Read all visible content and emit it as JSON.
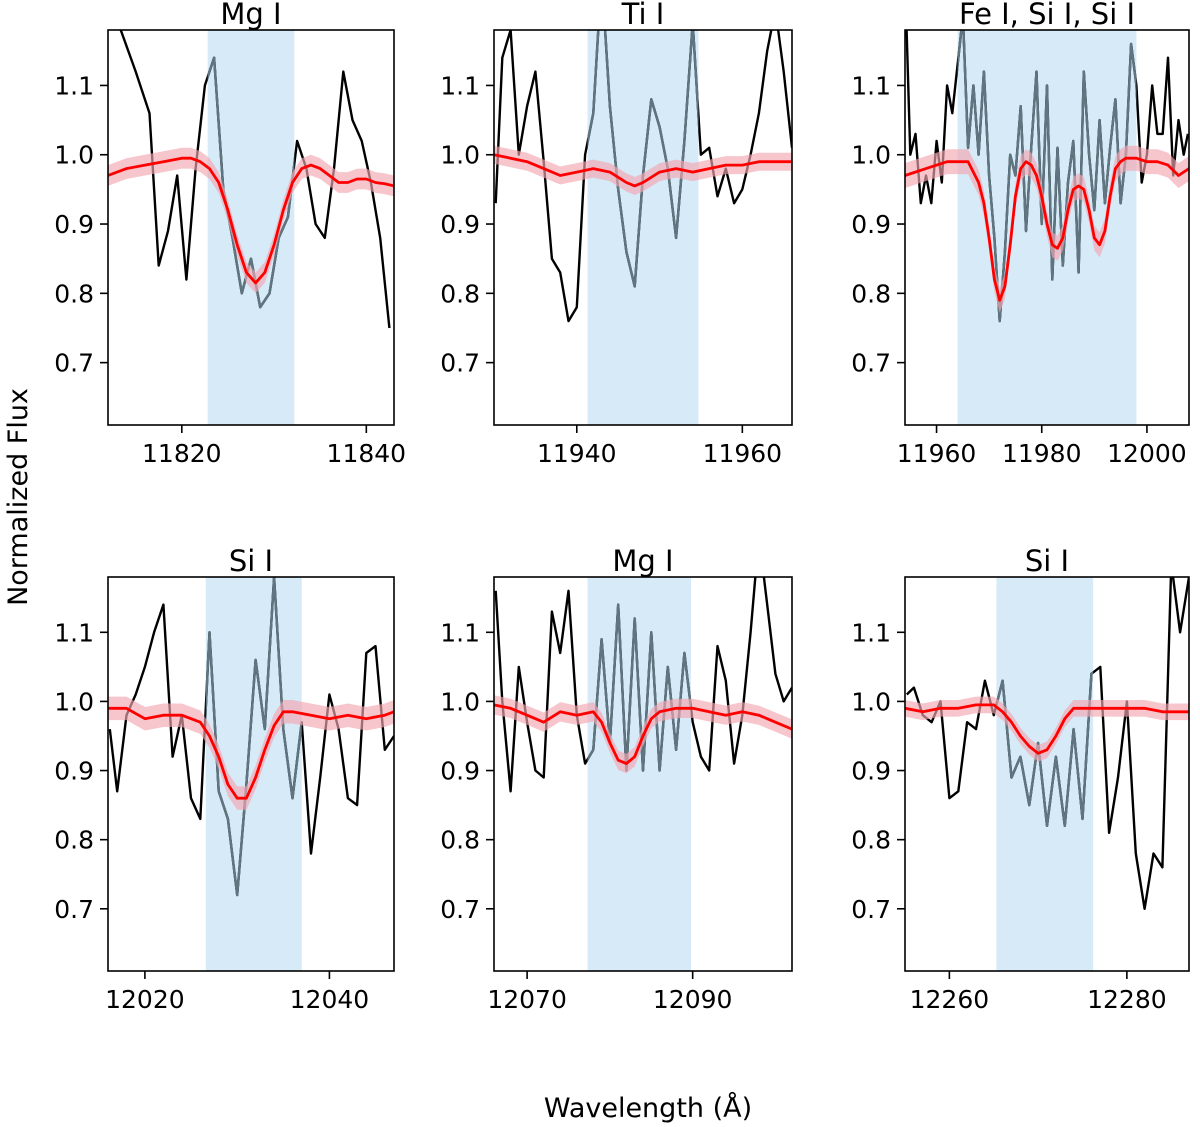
{
  "figure": {
    "ylabel": "Normalized Flux",
    "xlabel": "Wavelength (Å)"
  },
  "colors": {
    "observed": "#000000",
    "observed_in_window": "#5f7580",
    "model": "#ff0000",
    "model_band": "#f2a6b0",
    "window": "#d6eaf8"
  },
  "chart_data": [
    {
      "type": "line",
      "title": "Mg I",
      "xlim": [
        11812,
        11843
      ],
      "ylim": [
        0.61,
        1.18
      ],
      "xticks": [
        11820,
        11840
      ],
      "xtick_labels": [
        "11820",
        "11840"
      ],
      "yticks": [
        0.7,
        0.8,
        0.9,
        1.0,
        1.1
      ],
      "ytick_labels": [
        "0.7",
        "0.8",
        "0.9",
        "1.0",
        "1.1"
      ],
      "window": [
        11822.8,
        11832.2
      ],
      "observed": {
        "x": [
          11812.3,
          11815,
          11816.5,
          11817.5,
          11818.5,
          11819.5,
          11820.5,
          11821.5,
          11822.5,
          11823.5,
          11824.5,
          11825.5,
          11826.5,
          11827.5,
          11828.5,
          11829.5,
          11830.5,
          11831.5,
          11832.5,
          11833.5,
          11834.5,
          11835.5,
          11836.5,
          11837.5,
          11838.5,
          11839.5,
          11840.5,
          11841.5,
          11842.5
        ],
        "y": [
          1.22,
          1.12,
          1.06,
          0.84,
          0.89,
          0.97,
          0.82,
          0.98,
          1.1,
          1.14,
          0.95,
          0.88,
          0.8,
          0.85,
          0.78,
          0.8,
          0.88,
          0.91,
          1.02,
          0.98,
          0.9,
          0.88,
          0.98,
          1.12,
          1.05,
          1.02,
          0.96,
          0.88,
          0.75
        ]
      },
      "model": {
        "x": [
          11812,
          11814,
          11816,
          11818,
          11820,
          11821,
          11822,
          11823,
          11824,
          11825,
          11826,
          11827,
          11828,
          11829,
          11830,
          11831,
          11832,
          11833,
          11834,
          11835,
          11836,
          11837,
          11838,
          11839,
          11840,
          11841,
          11842,
          11843
        ],
        "y": [
          0.97,
          0.98,
          0.985,
          0.99,
          0.995,
          0.995,
          0.99,
          0.98,
          0.96,
          0.92,
          0.87,
          0.83,
          0.815,
          0.83,
          0.87,
          0.92,
          0.96,
          0.98,
          0.985,
          0.98,
          0.97,
          0.96,
          0.96,
          0.965,
          0.965,
          0.96,
          0.958,
          0.955
        ],
        "band": 0.015
      }
    },
    {
      "type": "line",
      "title": "Ti I",
      "xlim": [
        11930,
        11966
      ],
      "ylim": [
        0.61,
        1.18
      ],
      "xticks": [
        11940,
        11960
      ],
      "xtick_labels": [
        "11940",
        "11960"
      ],
      "yticks": [
        0.7,
        0.8,
        0.9,
        1.0,
        1.1
      ],
      "ytick_labels": [
        "0.7",
        "0.8",
        "0.9",
        "1.0",
        "1.1"
      ],
      "window": [
        11941.3,
        11954.7
      ],
      "observed": {
        "x": [
          11930.2,
          11931,
          11932,
          11933,
          11934,
          11935,
          11936,
          11937,
          11938,
          11939,
          11940,
          11941,
          11942,
          11943,
          11944,
          11945,
          11946,
          11947,
          11948,
          11949,
          11950,
          11951,
          11952,
          11953,
          11954,
          11955,
          11956,
          11957,
          11958,
          11959,
          11960,
          11961,
          11962,
          11963,
          11964,
          11965,
          11966
        ],
        "y": [
          0.93,
          1.14,
          1.18,
          1.0,
          1.07,
          1.12,
          0.99,
          0.85,
          0.83,
          0.76,
          0.78,
          1.0,
          1.06,
          1.26,
          1.07,
          0.95,
          0.86,
          0.81,
          0.97,
          1.08,
          1.04,
          0.98,
          0.88,
          1.02,
          1.19,
          1.0,
          1.01,
          0.94,
          0.98,
          0.93,
          0.95,
          1.0,
          1.06,
          1.15,
          1.21,
          1.12,
          1.01
        ]
      },
      "model": {
        "x": [
          11930,
          11932,
          11934,
          11936,
          11938,
          11940,
          11942,
          11944,
          11946,
          11947,
          11948,
          11950,
          11952,
          11954,
          11956,
          11958,
          11960,
          11962,
          11964,
          11966
        ],
        "y": [
          1.0,
          0.995,
          0.99,
          0.98,
          0.97,
          0.975,
          0.98,
          0.975,
          0.96,
          0.955,
          0.96,
          0.975,
          0.98,
          0.975,
          0.98,
          0.985,
          0.985,
          0.99,
          0.99,
          0.99
        ],
        "band": 0.013
      }
    },
    {
      "type": "line",
      "title": "Fe I, Si I, Si I",
      "xlim": [
        11954,
        12008
      ],
      "ylim": [
        0.61,
        1.18
      ],
      "xticks": [
        11960,
        11980,
        12000
      ],
      "xtick_labels": [
        "11960",
        "11980",
        "12000"
      ],
      "yticks": [
        0.7,
        0.8,
        0.9,
        1.0,
        1.1
      ],
      "ytick_labels": [
        "0.7",
        "0.8",
        "0.9",
        "1.0",
        "1.1"
      ],
      "window": [
        11964,
        11998
      ],
      "observed": {
        "x": [
          11954.3,
          11955,
          11956,
          11957,
          11958,
          11959,
          11960,
          11961,
          11962,
          11963,
          11964,
          11965,
          11966,
          11967,
          11968,
          11969,
          11970,
          11971,
          11972,
          11973,
          11974,
          11975,
          11976,
          11977,
          11978,
          11979,
          11980,
          11981,
          11982,
          11983,
          11984,
          11985,
          11986,
          11987,
          11988,
          11989,
          11990,
          11991,
          11992,
          11993,
          11994,
          11995,
          11996,
          11997,
          11998,
          11999,
          12000,
          12001,
          12002,
          12003,
          12004,
          12005,
          12006,
          12007,
          12007.8
        ],
        "y": [
          1.18,
          1.0,
          1.03,
          0.93,
          0.97,
          0.93,
          1.02,
          0.96,
          1.1,
          1.06,
          1.13,
          1.2,
          1.01,
          1.1,
          1.0,
          1.12,
          0.97,
          0.88,
          0.76,
          0.86,
          1.0,
          0.97,
          1.07,
          0.89,
          1.01,
          1.12,
          0.9,
          1.1,
          0.82,
          1.01,
          0.84,
          0.96,
          1.02,
          0.83,
          1.12,
          1.0,
          0.92,
          1.05,
          0.93,
          1.01,
          1.08,
          0.93,
          1.0,
          1.16,
          1.1,
          0.96,
          1.0,
          1.1,
          1.03,
          1.03,
          1.14,
          0.97,
          1.05,
          1.0,
          1.03
        ]
      },
      "model": {
        "x": [
          11954,
          11958,
          11962,
          11966,
          11968,
          11969,
          11970,
          11971,
          11972,
          11973,
          11974,
          11975,
          11976,
          11977,
          11978,
          11979,
          11980,
          11981,
          11982,
          11983,
          11984,
          11985,
          11986,
          11987,
          11988,
          11989,
          11990,
          11991,
          11992,
          11993,
          11994,
          11995,
          11996,
          11998,
          12000,
          12002,
          12004,
          12006,
          12008
        ],
        "y": [
          0.97,
          0.98,
          0.99,
          0.99,
          0.96,
          0.93,
          0.88,
          0.82,
          0.79,
          0.81,
          0.87,
          0.94,
          0.98,
          0.99,
          0.985,
          0.97,
          0.94,
          0.9,
          0.87,
          0.865,
          0.88,
          0.92,
          0.95,
          0.955,
          0.95,
          0.92,
          0.88,
          0.87,
          0.89,
          0.94,
          0.98,
          0.99,
          0.995,
          0.995,
          0.99,
          0.99,
          0.985,
          0.97,
          0.98
        ],
        "band": 0.018
      }
    },
    {
      "type": "line",
      "title": "Si I",
      "xlim": [
        12016,
        12047
      ],
      "ylim": [
        0.61,
        1.18
      ],
      "xticks": [
        12020,
        12040
      ],
      "xtick_labels": [
        "12020",
        "12040"
      ],
      "yticks": [
        0.7,
        0.8,
        0.9,
        1.0,
        1.1
      ],
      "ytick_labels": [
        "0.7",
        "0.8",
        "0.9",
        "1.0",
        "1.1"
      ],
      "window": [
        12026.6,
        12037
      ],
      "observed": {
        "x": [
          12016.2,
          12017,
          12018,
          12019,
          12020,
          12021,
          12022,
          12023,
          12024,
          12025,
          12026,
          12027,
          12028,
          12029,
          12030,
          12031,
          12032,
          12033,
          12034,
          12035,
          12036,
          12037,
          12038,
          12039,
          12040,
          12041,
          12042,
          12043,
          12044,
          12045,
          12046,
          12047
        ],
        "y": [
          0.96,
          0.87,
          0.98,
          1.01,
          1.05,
          1.1,
          1.14,
          0.92,
          0.98,
          0.86,
          0.83,
          1.1,
          0.87,
          0.83,
          0.72,
          0.88,
          1.06,
          0.96,
          1.18,
          0.96,
          0.86,
          0.97,
          0.78,
          0.89,
          1.01,
          0.96,
          0.86,
          0.85,
          1.07,
          1.08,
          0.93,
          0.95
        ]
      },
      "model": {
        "x": [
          12016,
          12018,
          12020,
          12022,
          12024,
          12026,
          12027,
          12028,
          12029,
          12030,
          12031,
          12032,
          12033,
          12034,
          12035,
          12036,
          12038,
          12040,
          12042,
          12044,
          12046,
          12047
        ],
        "y": [
          0.99,
          0.99,
          0.975,
          0.98,
          0.98,
          0.97,
          0.95,
          0.92,
          0.88,
          0.86,
          0.86,
          0.89,
          0.93,
          0.965,
          0.985,
          0.985,
          0.98,
          0.975,
          0.98,
          0.975,
          0.98,
          0.985
        ],
        "band": 0.017
      }
    },
    {
      "type": "line",
      "title": "Mg I",
      "xlim": [
        12066,
        12102
      ],
      "ylim": [
        0.61,
        1.18
      ],
      "xticks": [
        12070,
        12090
      ],
      "xtick_labels": [
        "12070",
        "12090"
      ],
      "yticks": [
        0.7,
        0.8,
        0.9,
        1.0,
        1.1
      ],
      "ytick_labels": [
        "0.7",
        "0.8",
        "0.9",
        "1.0",
        "1.1"
      ],
      "window": [
        12077.3,
        12089.8
      ],
      "observed": {
        "x": [
          12066.2,
          12067,
          12068,
          12069,
          12070,
          12071,
          12072,
          12073,
          12074,
          12075,
          12076,
          12077,
          12078,
          12079,
          12080,
          12081,
          12082,
          12083,
          12084,
          12085,
          12086,
          12087,
          12088,
          12089,
          12090,
          12091,
          12092,
          12093,
          12094,
          12095,
          12096,
          12097,
          12098,
          12099,
          12100,
          12101,
          12102
        ],
        "y": [
          1.16,
          1.0,
          0.87,
          1.05,
          0.97,
          0.9,
          0.89,
          1.13,
          1.07,
          1.16,
          0.98,
          0.91,
          0.93,
          1.09,
          0.94,
          1.14,
          0.9,
          1.12,
          0.9,
          1.1,
          0.9,
          1.05,
          0.93,
          1.07,
          0.97,
          0.92,
          0.9,
          1.08,
          1.03,
          0.91,
          0.98,
          1.1,
          1.24,
          1.14,
          1.04,
          1.0,
          1.02
        ]
      },
      "model": {
        "x": [
          12066,
          12068,
          12070,
          12072,
          12074,
          12076,
          12078,
          12079,
          12080,
          12081,
          12082,
          12083,
          12084,
          12085,
          12086,
          12088,
          12090,
          12092,
          12094,
          12096,
          12098,
          12100,
          12102
        ],
        "y": [
          0.995,
          0.99,
          0.98,
          0.97,
          0.985,
          0.98,
          0.985,
          0.97,
          0.94,
          0.915,
          0.91,
          0.92,
          0.95,
          0.975,
          0.985,
          0.99,
          0.99,
          0.985,
          0.98,
          0.985,
          0.98,
          0.97,
          0.96
        ],
        "band": 0.014
      }
    },
    {
      "type": "line",
      "title": "Si I",
      "xlim": [
        12255,
        12287
      ],
      "ylim": [
        0.61,
        1.18
      ],
      "xticks": [
        12260,
        12280
      ],
      "xtick_labels": [
        "12260",
        "12280"
      ],
      "yticks": [
        0.7,
        0.8,
        0.9,
        1.0,
        1.1
      ],
      "ytick_labels": [
        "0.7",
        "0.8",
        "0.9",
        "1.0",
        "1.1"
      ],
      "window": [
        12265.3,
        12276.2
      ],
      "observed": {
        "x": [
          12255.2,
          12256,
          12257,
          12258,
          12259,
          12260,
          12261,
          12262,
          12263,
          12264,
          12265,
          12266,
          12267,
          12268,
          12269,
          12270,
          12271,
          12272,
          12273,
          12274,
          12275,
          12276,
          12277,
          12278,
          12279,
          12280,
          12281,
          12282,
          12283,
          12284,
          12285,
          12286,
          12287
        ],
        "y": [
          1.01,
          1.02,
          0.98,
          0.97,
          1.0,
          0.86,
          0.87,
          0.97,
          0.96,
          1.03,
          0.98,
          1.03,
          0.89,
          0.92,
          0.85,
          0.94,
          0.82,
          0.92,
          0.82,
          0.96,
          0.83,
          1.04,
          1.05,
          0.81,
          0.89,
          1.0,
          0.78,
          0.7,
          0.78,
          0.76,
          1.2,
          1.1,
          1.18
        ]
      },
      "model": {
        "x": [
          12255,
          12257,
          12259,
          12261,
          12263,
          12265,
          12266,
          12267,
          12268,
          12269,
          12270,
          12271,
          12272,
          12273,
          12274,
          12275,
          12276,
          12278,
          12280,
          12282,
          12284,
          12286,
          12287
        ],
        "y": [
          0.99,
          0.985,
          0.99,
          0.99,
          0.995,
          0.995,
          0.985,
          0.97,
          0.95,
          0.935,
          0.925,
          0.93,
          0.95,
          0.975,
          0.99,
          0.99,
          0.99,
          0.99,
          0.99,
          0.99,
          0.985,
          0.985,
          0.985
        ],
        "band": 0.012
      }
    }
  ]
}
